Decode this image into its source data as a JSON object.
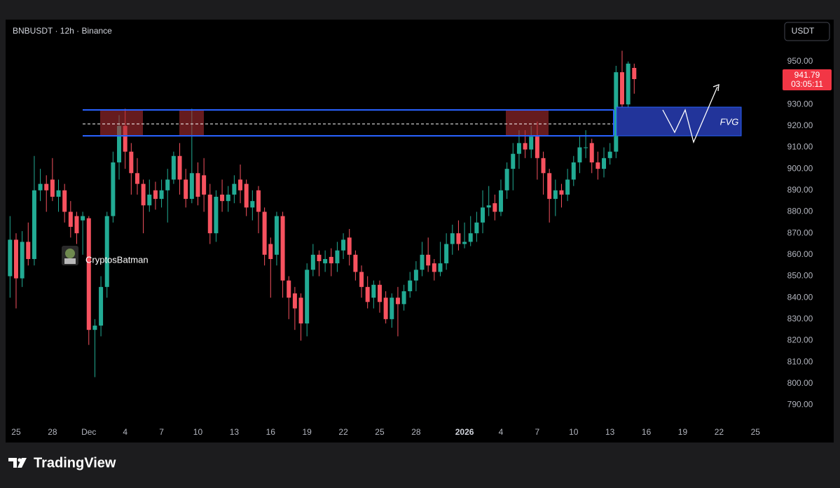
{
  "header": {
    "symbol": "BNBUSDT · 12h · Binance",
    "currency": "USDT"
  },
  "watermark": "CryptosBatman",
  "fvg_label": "FVG",
  "brand": "TradingView",
  "chart_data": {
    "type": "candlestick",
    "categories": [
      null,
      "25",
      null,
      null,
      null,
      null,
      null,
      "28",
      null,
      null,
      null,
      null,
      null,
      "Dec",
      null,
      null,
      null,
      null,
      null,
      "4",
      null,
      null,
      null,
      null,
      null,
      "7",
      null,
      null,
      null,
      null,
      null,
      "10",
      null,
      null,
      null,
      null,
      null,
      "13",
      null,
      null,
      null,
      null,
      null,
      "16",
      null,
      null,
      null,
      null,
      null,
      "19",
      null,
      null,
      null,
      null,
      null,
      "22",
      null,
      null,
      null,
      null,
      null,
      "25",
      null,
      null,
      null,
      null,
      null,
      "28",
      null,
      null,
      null,
      null,
      null,
      null,
      null,
      "2026",
      null,
      null,
      null,
      null,
      null,
      "4",
      null,
      null,
      null,
      null,
      null,
      "7",
      null,
      null,
      null,
      null,
      null,
      "10",
      null,
      null,
      null,
      null,
      null,
      "13",
      null,
      null,
      null,
      null,
      null,
      "16",
      null,
      null,
      null,
      null,
      null,
      "19",
      null,
      null,
      null,
      null,
      null,
      "22",
      null,
      null,
      null,
      null,
      null,
      "25"
    ],
    "open": [
      850,
      867,
      849,
      866,
      858,
      890,
      893,
      895,
      887,
      890,
      880,
      878,
      876,
      877,
      825,
      827,
      845,
      878,
      903,
      920,
      908,
      898,
      893,
      883,
      890,
      886,
      890,
      895,
      906,
      895,
      886,
      898,
      897,
      888,
      870,
      888,
      885,
      888,
      895,
      893,
      882,
      890,
      880,
      865,
      860,
      878,
      848,
      842,
      840,
      828,
      853,
      860,
      856,
      859,
      856,
      862,
      868,
      860,
      852,
      845,
      840,
      846,
      840,
      830,
      840,
      837,
      843,
      848,
      853,
      860,
      856,
      852,
      856,
      865,
      870,
      865,
      866,
      870,
      875,
      882,
      884,
      880,
      890,
      900,
      907,
      912,
      909,
      915,
      905,
      898,
      886,
      890,
      888,
      895,
      903,
      910,
      912,
      903,
      900,
      905,
      908,
      945,
      930,
      947,
      null,
      null,
      null,
      null,
      null,
      null,
      null,
      null,
      null,
      null,
      null,
      null,
      null,
      null,
      null,
      null,
      null,
      null,
      null,
      null
    ],
    "high": [
      878,
      870,
      871,
      875,
      906,
      900,
      897,
      905,
      895,
      893,
      885,
      880,
      880,
      878,
      830,
      850,
      880,
      908,
      925,
      928,
      912,
      905,
      895,
      895,
      894,
      895,
      900,
      908,
      912,
      900,
      928,
      903,
      905,
      893,
      890,
      895,
      892,
      897,
      902,
      895,
      890,
      892,
      882,
      868,
      880,
      880,
      850,
      845,
      842,
      856,
      865,
      862,
      862,
      863,
      866,
      870,
      872,
      862,
      855,
      850,
      848,
      848,
      843,
      842,
      845,
      846,
      852,
      857,
      866,
      868,
      858,
      866,
      870,
      874,
      876,
      875,
      878,
      880,
      890,
      892,
      888,
      895,
      903,
      912,
      918,
      918,
      920,
      922,
      908,
      900,
      895,
      893,
      900,
      906,
      915,
      918,
      914,
      908,
      910,
      912,
      948,
      955,
      950,
      949,
      null,
      null,
      null,
      null,
      null,
      null,
      null,
      null,
      null,
      null,
      null,
      null,
      null,
      null,
      null,
      null,
      null,
      null,
      null,
      null
    ],
    "low": [
      840,
      835,
      845,
      855,
      855,
      885,
      880,
      885,
      880,
      875,
      868,
      865,
      860,
      818,
      803,
      822,
      840,
      875,
      895,
      900,
      888,
      888,
      870,
      880,
      881,
      882,
      875,
      893,
      888,
      882,
      884,
      883,
      880,
      865,
      866,
      880,
      880,
      884,
      884,
      878,
      876,
      870,
      855,
      840,
      855,
      840,
      830,
      825,
      820,
      822,
      850,
      850,
      852,
      850,
      852,
      858,
      855,
      848,
      840,
      835,
      835,
      833,
      828,
      826,
      822,
      834,
      840,
      843,
      850,
      852,
      848,
      850,
      853,
      860,
      862,
      863,
      864,
      866,
      870,
      878,
      876,
      878,
      886,
      890,
      900,
      905,
      905,
      895,
      888,
      875,
      878,
      882,
      885,
      892,
      898,
      905,
      898,
      895,
      896,
      902,
      905,
      928,
      928,
      935,
      null,
      null,
      null,
      null,
      null,
      null,
      null,
      null,
      null,
      null,
      null,
      null,
      null,
      null,
      null,
      null,
      null,
      null,
      null,
      null
    ],
    "close": [
      867,
      849,
      866,
      858,
      890,
      893,
      890,
      887,
      890,
      880,
      873,
      870,
      878,
      825,
      827,
      845,
      878,
      903,
      920,
      908,
      898,
      893,
      883,
      888,
      886,
      890,
      895,
      906,
      895,
      886,
      898,
      887,
      888,
      870,
      887,
      885,
      888,
      893,
      890,
      882,
      885,
      880,
      860,
      858,
      878,
      848,
      840,
      835,
      828,
      853,
      860,
      857,
      858,
      856,
      862,
      867,
      860,
      852,
      845,
      838,
      846,
      838,
      830,
      840,
      837,
      843,
      848,
      853,
      860,
      855,
      852,
      856,
      865,
      870,
      865,
      866,
      870,
      875,
      882,
      883,
      880,
      890,
      900,
      907,
      912,
      909,
      915,
      905,
      898,
      886,
      890,
      888,
      895,
      903,
      910,
      910,
      903,
      900,
      905,
      908,
      945,
      930,
      949,
      941.79,
      null,
      null,
      null,
      null,
      null,
      null,
      null,
      null,
      null,
      null,
      null,
      null,
      null,
      null,
      null,
      null,
      null,
      null,
      null,
      null
    ],
    "up_color": "#22ab94",
    "down_color": "#f7525f",
    "last_price_color": "#f23645",
    "countdown": "03:05:11",
    "ylim": [
      783,
      962
    ],
    "yticks": [
      {
        "value": 950,
        "label": "950.00"
      },
      {
        "value": 930,
        "label": "930.00"
      },
      {
        "value": 920,
        "label": "920.00"
      },
      {
        "value": 910,
        "label": "910.00"
      },
      {
        "value": 900,
        "label": "900.00"
      },
      {
        "value": 890,
        "label": "890.00"
      },
      {
        "value": 880,
        "label": "880.00"
      },
      {
        "value": 870,
        "label": "870.00"
      },
      {
        "value": 860,
        "label": "860.00"
      },
      {
        "value": 850,
        "label": "850.00"
      },
      {
        "value": 840,
        "label": "840.00"
      },
      {
        "value": 830,
        "label": "830.00"
      },
      {
        "value": 820,
        "label": "820.00"
      },
      {
        "value": 810,
        "label": "810.00"
      },
      {
        "value": 800,
        "label": "800.00"
      },
      {
        "value": 790,
        "label": "790.00"
      }
    ]
  }
}
